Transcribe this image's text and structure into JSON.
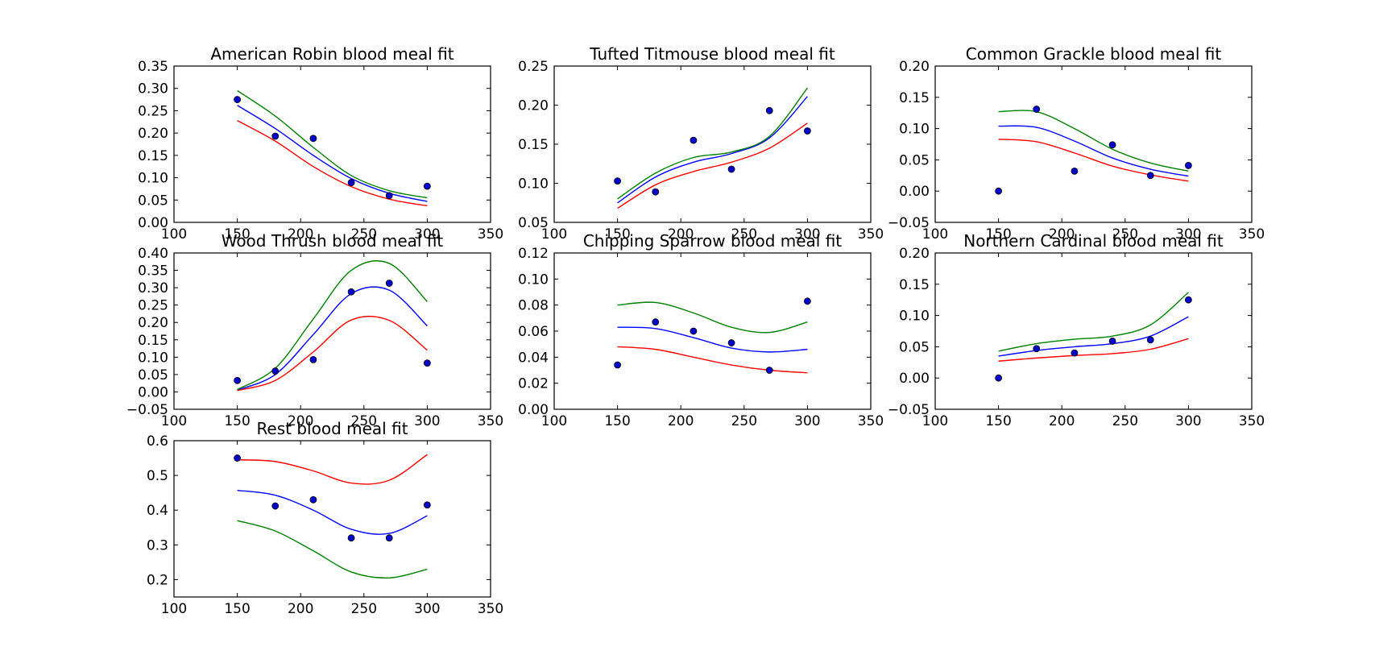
{
  "chart_data": [
    {
      "type": "scatter",
      "title": "American Robin blood meal fit",
      "xlim": [
        100,
        350
      ],
      "ylim": [
        0.0,
        0.35
      ],
      "xticks": [
        "100",
        "150",
        "200",
        "250",
        "300",
        "350"
      ],
      "yticks": [
        "0.00",
        "0.05",
        "0.10",
        "0.15",
        "0.20",
        "0.25",
        "0.30",
        "0.35"
      ],
      "points": {
        "x": [
          150,
          180,
          210,
          240,
          270,
          300
        ],
        "y": [
          0.275,
          0.193,
          0.188,
          0.089,
          0.06,
          0.081
        ]
      },
      "series": [
        {
          "color": "#0000ff",
          "x": [
            150,
            180,
            210,
            240,
            270,
            300
          ],
          "y": [
            0.262,
            0.21,
            0.15,
            0.098,
            0.065,
            0.047
          ]
        },
        {
          "color": "#008000",
          "x": [
            150,
            180,
            210,
            240,
            270,
            300
          ],
          "y": [
            0.295,
            0.238,
            0.168,
            0.105,
            0.071,
            0.055
          ]
        },
        {
          "color": "#ff0000",
          "x": [
            150,
            180,
            210,
            240,
            270,
            300
          ],
          "y": [
            0.228,
            0.182,
            0.125,
            0.08,
            0.052,
            0.037
          ]
        }
      ]
    },
    {
      "type": "scatter",
      "title": "Tufted Titmouse blood meal fit",
      "xlim": [
        100,
        350
      ],
      "ylim": [
        0.05,
        0.25
      ],
      "xticks": [
        "100",
        "150",
        "200",
        "250",
        "300",
        "350"
      ],
      "yticks": [
        "0.05",
        "0.10",
        "0.15",
        "0.20",
        "0.25"
      ],
      "points": {
        "x": [
          150,
          180,
          210,
          240,
          270,
          300
        ],
        "y": [
          0.103,
          0.089,
          0.155,
          0.118,
          0.193,
          0.167
        ]
      },
      "series": [
        {
          "color": "#0000ff",
          "x": [
            150,
            180,
            210,
            240,
            270,
            300
          ],
          "y": [
            0.075,
            0.108,
            0.127,
            0.138,
            0.158,
            0.211
          ]
        },
        {
          "color": "#008000",
          "x": [
            150,
            180,
            210,
            240,
            270,
            300
          ],
          "y": [
            0.08,
            0.113,
            0.133,
            0.14,
            0.16,
            0.222
          ]
        },
        {
          "color": "#ff0000",
          "x": [
            150,
            180,
            210,
            240,
            270,
            300
          ],
          "y": [
            0.068,
            0.098,
            0.115,
            0.127,
            0.145,
            0.177
          ]
        }
      ]
    },
    {
      "type": "scatter",
      "title": "Common Grackle blood meal fit",
      "xlim": [
        100,
        350
      ],
      "ylim": [
        -0.05,
        0.2
      ],
      "xticks": [
        "100",
        "150",
        "200",
        "250",
        "300",
        "350"
      ],
      "yticks": [
        "−0.05",
        "0.00",
        "0.05",
        "0.10",
        "0.15",
        "0.20"
      ],
      "points": {
        "x": [
          150,
          180,
          210,
          240,
          270,
          300
        ],
        "y": [
          0.0,
          0.131,
          0.032,
          0.074,
          0.025,
          0.041
        ]
      },
      "series": [
        {
          "color": "#0000ff",
          "x": [
            150,
            180,
            210,
            240,
            270,
            300
          ],
          "y": [
            0.104,
            0.102,
            0.08,
            0.053,
            0.035,
            0.024
          ]
        },
        {
          "color": "#008000",
          "x": [
            150,
            180,
            210,
            240,
            270,
            300
          ],
          "y": [
            0.127,
            0.127,
            0.1,
            0.067,
            0.045,
            0.032
          ]
        },
        {
          "color": "#ff0000",
          "x": [
            150,
            180,
            210,
            240,
            270,
            300
          ],
          "y": [
            0.083,
            0.079,
            0.061,
            0.04,
            0.026,
            0.016
          ]
        }
      ]
    },
    {
      "type": "scatter",
      "title": "Wood Thrush blood meal fit",
      "xlim": [
        100,
        350
      ],
      "ylim": [
        -0.05,
        0.4
      ],
      "xticks": [
        "100",
        "150",
        "200",
        "250",
        "300",
        "350"
      ],
      "yticks": [
        "−0.05",
        "0.00",
        "0.05",
        "0.10",
        "0.15",
        "0.20",
        "0.25",
        "0.30",
        "0.35",
        "0.40"
      ],
      "points": {
        "x": [
          150,
          180,
          210,
          240,
          270,
          300
        ],
        "y": [
          0.033,
          0.06,
          0.093,
          0.288,
          0.313,
          0.083
        ]
      },
      "series": [
        {
          "color": "#0000ff",
          "x": [
            150,
            180,
            210,
            240,
            270,
            300
          ],
          "y": [
            0.005,
            0.05,
            0.165,
            0.283,
            0.293,
            0.19
          ]
        },
        {
          "color": "#008000",
          "x": [
            150,
            180,
            210,
            240,
            270,
            300
          ],
          "y": [
            0.007,
            0.068,
            0.21,
            0.35,
            0.37,
            0.26
          ]
        },
        {
          "color": "#ff0000",
          "x": [
            150,
            180,
            210,
            240,
            270,
            300
          ],
          "y": [
            0.004,
            0.033,
            0.115,
            0.207,
            0.206,
            0.12
          ]
        }
      ]
    },
    {
      "type": "scatter",
      "title": "Chipping Sparrow blood meal fit",
      "xlim": [
        100,
        350
      ],
      "ylim": [
        0.0,
        0.12
      ],
      "xticks": [
        "100",
        "150",
        "200",
        "250",
        "300",
        "350"
      ],
      "yticks": [
        "0.00",
        "0.02",
        "0.04",
        "0.06",
        "0.08",
        "0.10",
        "0.12"
      ],
      "points": {
        "x": [
          150,
          180,
          210,
          240,
          270,
          300
        ],
        "y": [
          0.034,
          0.067,
          0.06,
          0.051,
          0.03,
          0.083
        ]
      },
      "series": [
        {
          "color": "#0000ff",
          "x": [
            150,
            180,
            210,
            240,
            270,
            300
          ],
          "y": [
            0.063,
            0.062,
            0.055,
            0.047,
            0.044,
            0.046
          ]
        },
        {
          "color": "#008000",
          "x": [
            150,
            180,
            210,
            240,
            270,
            300
          ],
          "y": [
            0.08,
            0.082,
            0.074,
            0.063,
            0.059,
            0.067
          ]
        },
        {
          "color": "#ff0000",
          "x": [
            150,
            180,
            210,
            240,
            270,
            300
          ],
          "y": [
            0.048,
            0.046,
            0.04,
            0.034,
            0.03,
            0.028
          ]
        }
      ]
    },
    {
      "type": "scatter",
      "title": "Northern Cardinal blood meal fit",
      "xlim": [
        100,
        350
      ],
      "ylim": [
        -0.05,
        0.2
      ],
      "xticks": [
        "100",
        "150",
        "200",
        "250",
        "300",
        "350"
      ],
      "yticks": [
        "−0.05",
        "0.00",
        "0.05",
        "0.10",
        "0.15",
        "0.20"
      ],
      "points": {
        "x": [
          150,
          180,
          210,
          240,
          270,
          300
        ],
        "y": [
          0.0,
          0.047,
          0.04,
          0.059,
          0.061,
          0.125
        ]
      },
      "series": [
        {
          "color": "#0000ff",
          "x": [
            150,
            180,
            210,
            240,
            270,
            300
          ],
          "y": [
            0.035,
            0.044,
            0.05,
            0.055,
            0.067,
            0.098
          ]
        },
        {
          "color": "#008000",
          "x": [
            150,
            180,
            210,
            240,
            270,
            300
          ],
          "y": [
            0.043,
            0.055,
            0.062,
            0.067,
            0.085,
            0.137
          ]
        },
        {
          "color": "#ff0000",
          "x": [
            150,
            180,
            210,
            240,
            270,
            300
          ],
          "y": [
            0.027,
            0.032,
            0.036,
            0.039,
            0.046,
            0.063
          ]
        }
      ]
    },
    {
      "type": "scatter",
      "title": "Rest blood meal fit",
      "xlim": [
        100,
        350
      ],
      "ylim": [
        0.15,
        0.6
      ],
      "xticks": [
        "100",
        "150",
        "200",
        "250",
        "300",
        "350"
      ],
      "yticks": [
        "0.2",
        "0.3",
        "0.4",
        "0.5",
        "0.6"
      ],
      "points": {
        "x": [
          150,
          180,
          210,
          240,
          270,
          300
        ],
        "y": [
          0.55,
          0.412,
          0.43,
          0.32,
          0.32,
          0.415
        ]
      },
      "series": [
        {
          "color": "#ff0000",
          "x": [
            150,
            180,
            210,
            240,
            270,
            300
          ],
          "y": [
            0.545,
            0.54,
            0.513,
            0.478,
            0.486,
            0.56
          ]
        },
        {
          "color": "#0000ff",
          "x": [
            150,
            180,
            210,
            240,
            270,
            300
          ],
          "y": [
            0.457,
            0.443,
            0.4,
            0.345,
            0.333,
            0.384
          ]
        },
        {
          "color": "#008000",
          "x": [
            150,
            180,
            210,
            240,
            270,
            300
          ],
          "y": [
            0.37,
            0.34,
            0.283,
            0.222,
            0.205,
            0.23
          ]
        }
      ]
    }
  ]
}
